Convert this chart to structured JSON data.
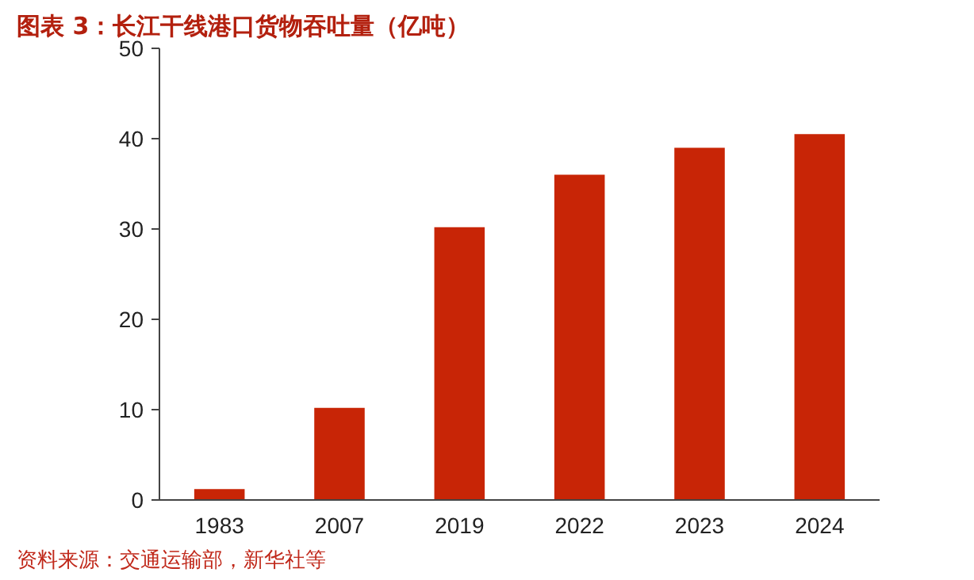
{
  "chart_data": {
    "type": "bar",
    "title": "图表 3：长江干线港口货物吞吐量（亿吨）",
    "categories": [
      "1983",
      "2007",
      "2019",
      "2022",
      "2023",
      "2024"
    ],
    "values": [
      1.2,
      10.2,
      30.2,
      36,
      39,
      40.5
    ],
    "color": "#c82506",
    "ylim": [
      0,
      50
    ],
    "yticks": [
      0,
      10,
      20,
      30,
      40,
      50
    ],
    "grid": false,
    "annotations": [
      "资料来源：交通运输部，新华社等"
    ]
  }
}
